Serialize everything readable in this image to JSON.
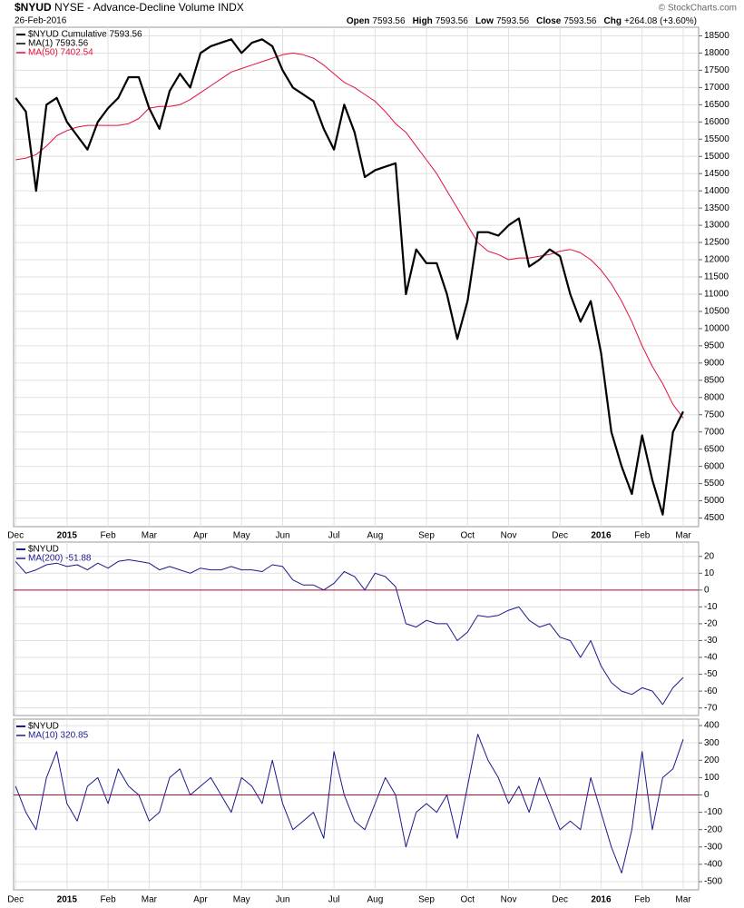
{
  "header": {
    "symbol": "$NYUD",
    "name": "NYSE - Advance-Decline Volume INDX",
    "date": "26-Feb-2016",
    "credit": "© StockCharts.com",
    "quote": [
      {
        "label": "Open",
        "value": "7593.56"
      },
      {
        "label": "High",
        "value": "7593.56"
      },
      {
        "label": "Low",
        "value": "7593.56"
      },
      {
        "label": "Close",
        "value": "7593.56"
      },
      {
        "label": "Chg",
        "value": "+264.08 (+3.60%)"
      }
    ]
  },
  "chart_data": [
    {
      "type": "line",
      "label": "$NYUD Cumulative 7593.56",
      "categories": [
        "Dec",
        null,
        null,
        null,
        null,
        "2015",
        null,
        null,
        null,
        "Feb",
        null,
        null,
        null,
        "Mar",
        null,
        null,
        null,
        null,
        "Apr",
        null,
        null,
        null,
        "May",
        null,
        null,
        null,
        "Jun",
        null,
        null,
        null,
        null,
        "Jul",
        null,
        null,
        null,
        "Aug",
        null,
        null,
        null,
        null,
        "Sep",
        null,
        null,
        null,
        "Oct",
        null,
        null,
        null,
        "Nov",
        null,
        null,
        null,
        null,
        "Dec",
        null,
        null,
        null,
        "2016",
        null,
        null,
        null,
        "Feb",
        null,
        null,
        null,
        "Mar"
      ],
      "series": [
        {
          "name": "MA(1) 7593.56",
          "color": "#000000",
          "values": [
            16700,
            16300,
            14000,
            16500,
            16700,
            16000,
            15600,
            15200,
            16000,
            16400,
            16700,
            17300,
            17300,
            16400,
            15800,
            16900,
            17400,
            17000,
            18000,
            18200,
            18300,
            18400,
            18000,
            18300,
            18400,
            18200,
            17500,
            17000,
            16800,
            16600,
            15800,
            15200,
            16500,
            15700,
            14400,
            14600,
            14700,
            14800,
            11000,
            12300,
            11900,
            11900,
            11000,
            9700,
            10800,
            12800,
            12800,
            12700,
            13000,
            13200,
            11800,
            12000,
            12300,
            12100,
            11000,
            10200,
            10800,
            9300,
            7000,
            6000,
            5200,
            6900,
            5600,
            4600,
            7000,
            7593.56
          ]
        },
        {
          "name": "MA(50) 7402.54",
          "color": "#e0103a",
          "values": [
            14900,
            14950,
            15050,
            15300,
            15600,
            15750,
            15850,
            15900,
            15900,
            15900,
            15900,
            15950,
            16100,
            16400,
            16450,
            16450,
            16500,
            16650,
            16850,
            17050,
            17250,
            17450,
            17550,
            17650,
            17750,
            17850,
            17950,
            18000,
            17950,
            17850,
            17650,
            17400,
            17150,
            17000,
            16800,
            16600,
            16300,
            15950,
            15700,
            15300,
            14900,
            14500,
            14000,
            13500,
            13000,
            12500,
            12250,
            12150,
            12000,
            12050,
            12050,
            12100,
            12150,
            12250,
            12300,
            12200,
            12000,
            11700,
            11300,
            10800,
            10200,
            9500,
            8900,
            8400,
            7800,
            7402.54
          ]
        }
      ],
      "ylim": [
        4250,
        18750
      ],
      "yticks": [
        4500,
        5000,
        5500,
        6000,
        6500,
        7000,
        7500,
        8000,
        8500,
        9000,
        9500,
        10000,
        10500,
        11000,
        11500,
        12000,
        12500,
        13000,
        13500,
        14000,
        14500,
        15000,
        15500,
        16000,
        16500,
        17000,
        17500,
        18000,
        18500
      ],
      "grid": true
    },
    {
      "type": "line",
      "label": "$NYUD",
      "series": [
        {
          "name": "MA(200) -51.88",
          "color": "#1a1a8c",
          "values": [
            17,
            10,
            12,
            15,
            16,
            14,
            15,
            12,
            16,
            13,
            17,
            18,
            17,
            16,
            12,
            14,
            12,
            10,
            13,
            12,
            12,
            14,
            12,
            12,
            11,
            15,
            14,
            6,
            3,
            3,
            0,
            4,
            11,
            8,
            0,
            10,
            8,
            2,
            -20,
            -22,
            -18,
            -20,
            -20,
            -30,
            -25,
            -15,
            -16,
            -15,
            -12,
            -10,
            -18,
            -22,
            -20,
            -28,
            -30,
            -40,
            -30,
            -45,
            -55,
            -60,
            -62,
            -58,
            -60,
            -68,
            -58,
            -51.88
          ]
        }
      ],
      "ylim": [
        -74.5,
        28.5
      ],
      "yticks": [
        20,
        10,
        0,
        -10,
        -20,
        -30,
        -40,
        -50,
        -60,
        -70
      ],
      "hline": 0,
      "hline_color": "#b0103a",
      "grid": true
    },
    {
      "type": "line",
      "label": "$NYUD",
      "categories": [
        "Dec",
        null,
        null,
        null,
        null,
        "2015",
        null,
        null,
        null,
        "Feb",
        null,
        null,
        null,
        "Mar",
        null,
        null,
        null,
        null,
        "Apr",
        null,
        null,
        null,
        "May",
        null,
        null,
        null,
        "Jun",
        null,
        null,
        null,
        null,
        "Jul",
        null,
        null,
        null,
        "Aug",
        null,
        null,
        null,
        null,
        "Sep",
        null,
        null,
        null,
        "Oct",
        null,
        null,
        null,
        "Nov",
        null,
        null,
        null,
        null,
        "Dec",
        null,
        null,
        null,
        "2016",
        null,
        null,
        null,
        "Feb",
        null,
        null,
        null,
        "Mar"
      ],
      "series": [
        {
          "name": "MA(10) 320.85",
          "color": "#1a1a8c",
          "values": [
            50,
            -100,
            -200,
            100,
            250,
            -50,
            -150,
            50,
            100,
            -50,
            150,
            50,
            0,
            -150,
            -100,
            100,
            150,
            0,
            50,
            100,
            0,
            -100,
            100,
            50,
            -50,
            200,
            -50,
            -200,
            -150,
            -100,
            -250,
            250,
            0,
            -150,
            -200,
            -50,
            100,
            0,
            -300,
            -100,
            -50,
            -100,
            0,
            -250,
            50,
            350,
            200,
            100,
            -50,
            50,
            -100,
            100,
            -50,
            -200,
            -150,
            -200,
            100,
            -100,
            -300,
            -450,
            -200,
            250,
            -200,
            100,
            150,
            320.85
          ]
        }
      ],
      "ylim": [
        -547,
        437
      ],
      "yticks": [
        400,
        300,
        200,
        100,
        0,
        -100,
        -200,
        -300,
        -400,
        -500
      ],
      "hline": 0,
      "hline_color": "#b0103a",
      "grid": true
    }
  ]
}
